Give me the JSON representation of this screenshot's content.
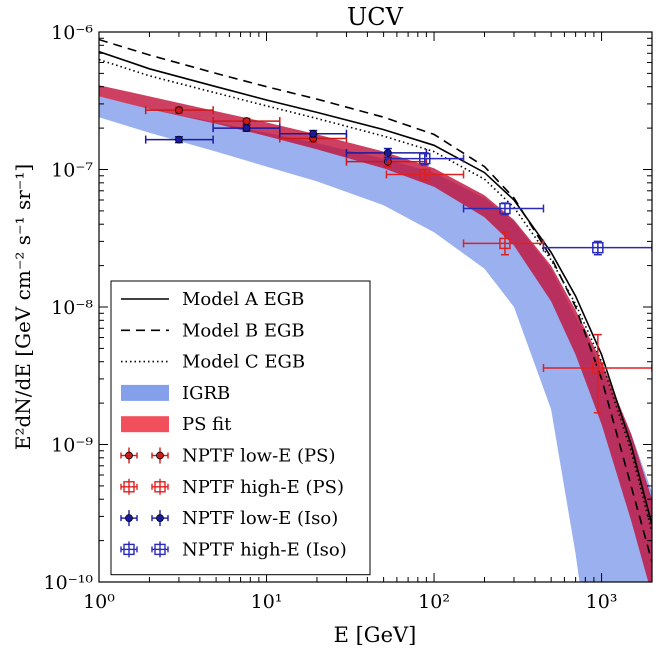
{
  "chart_data": {
    "type": "line",
    "title": "UCV",
    "xlabel": "E [GeV]",
    "ylabel": "E²dN/dE [GeV cm⁻² s⁻¹ sr⁻¹]",
    "xscale": "log",
    "yscale": "log",
    "xlim": [
      1,
      2000
    ],
    "ylim": [
      1e-10,
      1e-06
    ],
    "x_ticks": [
      {
        "value": 1,
        "label": "10⁰"
      },
      {
        "value": 10,
        "label": "10¹"
      },
      {
        "value": 100,
        "label": "10²"
      },
      {
        "value": 1000,
        "label": "10³"
      }
    ],
    "y_ticks": [
      {
        "value": 1e-10,
        "label": "10⁻¹⁰"
      },
      {
        "value": 1e-09,
        "label": "10⁻⁹"
      },
      {
        "value": 1e-08,
        "label": "10⁻⁸"
      },
      {
        "value": 1e-07,
        "label": "10⁻⁷"
      },
      {
        "value": 1e-06,
        "label": "10⁻⁶"
      }
    ],
    "legend_position": "bottom-left",
    "lines": [
      {
        "name": "Model A EGB",
        "style": "solid",
        "color": "#000000",
        "x": [
          1,
          2,
          5,
          10,
          20,
          50,
          100,
          200,
          300,
          500,
          700,
          1000,
          1500,
          2000
        ],
        "y": [
          7.2e-07,
          5.4e-07,
          4e-07,
          3.2e-07,
          2.6e-07,
          1.95e-07,
          1.5e-07,
          9.5e-08,
          6e-08,
          2.5e-08,
          1.2e-08,
          4.5e-09,
          1e-09,
          2.6e-10
        ]
      },
      {
        "name": "Model B EGB",
        "style": "dashed",
        "color": "#000000",
        "x": [
          1,
          2,
          5,
          10,
          20,
          50,
          100,
          200,
          300,
          500,
          700,
          1000,
          1500,
          2000
        ],
        "y": [
          8.8e-07,
          6.8e-07,
          5e-07,
          4e-07,
          3.25e-07,
          2.4e-07,
          1.8e-07,
          1.05e-07,
          6.2e-08,
          2.3e-08,
          1e-08,
          3e-09,
          5e-10,
          1.4e-10
        ]
      },
      {
        "name": "Model C EGB",
        "style": "dotted",
        "color": "#000000",
        "x": [
          1,
          2,
          5,
          10,
          20,
          50,
          100,
          200,
          300,
          500,
          700,
          1000,
          1500,
          2000
        ],
        "y": [
          6.3e-07,
          4.8e-07,
          3.6e-07,
          2.9e-07,
          2.35e-07,
          1.75e-07,
          1.35e-07,
          8.5e-08,
          5.3e-08,
          2.2e-08,
          1.05e-08,
          4e-09,
          9e-10,
          2.3e-10
        ]
      }
    ],
    "bands": [
      {
        "name": "IGRB",
        "color": "#6f8fe8",
        "opacity": 0.7,
        "x": [
          1,
          2,
          5,
          10,
          20,
          50,
          100,
          200,
          300,
          500,
          700,
          800,
          1000,
          1500,
          2000
        ],
        "upper": [
          3.4e-07,
          2.75e-07,
          2.2e-07,
          1.85e-07,
          1.55e-07,
          1.2e-07,
          9.5e-08,
          6.2e-08,
          4.2e-08,
          1.9e-08,
          8.5e-09,
          6.5e-09,
          3.5e-09,
          1.2e-09,
          4.5e-10
        ],
        "lower": [
          2.4e-07,
          1.85e-07,
          1.35e-07,
          1.05e-07,
          8.2e-08,
          5.5e-08,
          3.5e-08,
          1.9e-08,
          1e-08,
          1.8e-09,
          1.6e-10,
          5e-11,
          5e-11,
          5e-11,
          5e-11
        ]
      },
      {
        "name": "PS fit",
        "color": "#c0103a",
        "opacity": 0.8,
        "x": [
          1,
          2,
          5,
          10,
          20,
          50,
          100,
          200,
          300,
          500,
          700,
          1000,
          1500,
          2000
        ],
        "upper": [
          4.1e-07,
          3.4e-07,
          2.65e-07,
          2.2e-07,
          1.8e-07,
          1.35e-07,
          1.02e-07,
          6.5e-08,
          4.3e-08,
          2e-08,
          9.5e-09,
          4e-09,
          1.2e-09,
          4e-10
        ],
        "lower": [
          3.4e-07,
          2.75e-07,
          2.15e-07,
          1.75e-07,
          1.4e-07,
          1.02e-07,
          7.5e-08,
          4.5e-08,
          2.8e-08,
          1.1e-08,
          4.5e-09,
          1.4e-09,
          2.8e-10,
          8e-11
        ]
      }
    ],
    "series": [
      {
        "name": "NPTF low-E (PS)",
        "color": "#cc1818",
        "marker": "filled-circle",
        "points": [
          {
            "x": 3.0,
            "y": 2.7e-07,
            "xlo": 1.9,
            "xhi": 4.8,
            "ylo": 2.57e-07,
            "yhi": 2.83e-07
          },
          {
            "x": 7.6,
            "y": 2.25e-07,
            "xlo": 4.8,
            "xhi": 12.0,
            "ylo": 2.15e-07,
            "yhi": 2.35e-07
          },
          {
            "x": 19.0,
            "y": 1.68e-07,
            "xlo": 12.0,
            "xhi": 30.0,
            "ylo": 1.58e-07,
            "yhi": 1.78e-07
          },
          {
            "x": 53.0,
            "y": 1.14e-07,
            "xlo": 30.0,
            "xhi": 90.0,
            "ylo": 1.05e-07,
            "yhi": 1.23e-07
          }
        ]
      },
      {
        "name": "NPTF high-E (PS)",
        "color": "#e02020",
        "marker": "open-square",
        "points": [
          {
            "x": 88.0,
            "y": 9.2e-08,
            "xlo": 52.0,
            "xhi": 150.0,
            "ylo": 8.4e-08,
            "yhi": 1e-07
          },
          {
            "x": 265.0,
            "y": 2.9e-08,
            "xlo": 150.0,
            "xhi": 450.0,
            "ylo": 2.4e-08,
            "yhi": 3.5e-08
          },
          {
            "x": 950.0,
            "y": 3.6e-09,
            "xlo": 450.0,
            "xhi": 2000.0,
            "ylo": 1.7e-09,
            "yhi": 6.3e-09
          }
        ]
      },
      {
        "name": "NPTF low-E (Iso)",
        "color": "#1a1aa0",
        "marker": "filled-circle",
        "points": [
          {
            "x": 3.0,
            "y": 1.65e-07,
            "xlo": 1.9,
            "xhi": 4.8,
            "ylo": 1.57e-07,
            "yhi": 1.73e-07
          },
          {
            "x": 7.6,
            "y": 2e-07,
            "xlo": 4.8,
            "xhi": 12.0,
            "ylo": 1.9e-07,
            "yhi": 2.1e-07
          },
          {
            "x": 19.0,
            "y": 1.82e-07,
            "xlo": 12.0,
            "xhi": 30.0,
            "ylo": 1.72e-07,
            "yhi": 1.92e-07
          },
          {
            "x": 53.0,
            "y": 1.32e-07,
            "xlo": 30.0,
            "xhi": 90.0,
            "ylo": 1.22e-07,
            "yhi": 1.42e-07
          }
        ]
      },
      {
        "name": "NPTF high-E (Iso)",
        "color": "#2a2ab8",
        "marker": "open-square",
        "points": [
          {
            "x": 88.0,
            "y": 1.2e-07,
            "xlo": 52.0,
            "xhi": 150.0,
            "ylo": 1.08e-07,
            "yhi": 1.32e-07
          },
          {
            "x": 265.0,
            "y": 5.2e-08,
            "xlo": 150.0,
            "xhi": 450.0,
            "ylo": 4.7e-08,
            "yhi": 5.7e-08
          },
          {
            "x": 950.0,
            "y": 2.7e-08,
            "xlo": 450.0,
            "xhi": 2000.0,
            "ylo": 2.4e-08,
            "yhi": 3e-08
          }
        ]
      }
    ],
    "legend": [
      {
        "label": "Model A EGB",
        "kind": "line",
        "style": "solid"
      },
      {
        "label": "Model B EGB",
        "kind": "line",
        "style": "dashed"
      },
      {
        "label": "Model C EGB",
        "kind": "line",
        "style": "dotted"
      },
      {
        "label": "IGRB",
        "kind": "band",
        "color": "#6f8fe8"
      },
      {
        "label": "PS fit",
        "kind": "band",
        "color": "#f03040"
      },
      {
        "label": "NPTF low-E (PS)",
        "kind": "point",
        "color": "#cc1818",
        "marker": "filled-circle"
      },
      {
        "label": "NPTF high-E (PS)",
        "kind": "point",
        "color": "#e02020",
        "marker": "open-square"
      },
      {
        "label": "NPTF low-E (Iso)",
        "kind": "point",
        "color": "#1a1aa0",
        "marker": "filled-circle"
      },
      {
        "label": "NPTF high-E (Iso)",
        "kind": "point",
        "color": "#2a2ab8",
        "marker": "open-square"
      }
    ]
  }
}
